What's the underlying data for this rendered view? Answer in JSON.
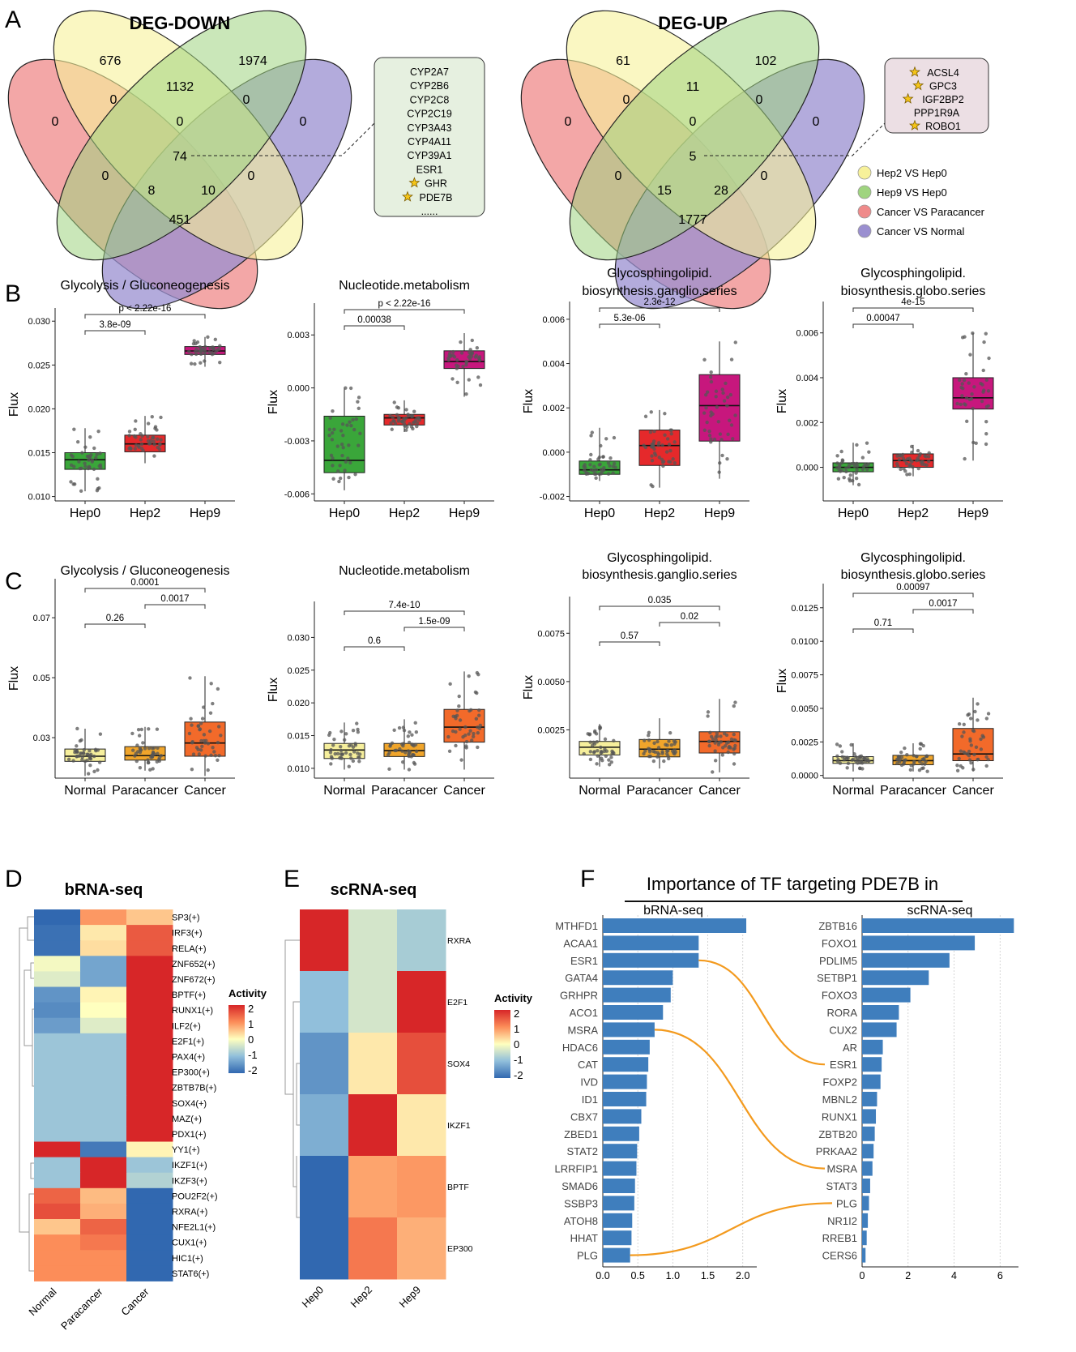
{
  "panel_labels": [
    "A",
    "B",
    "C",
    "D",
    "E",
    "F"
  ],
  "venn": {
    "down": {
      "title": "DEG-DOWN",
      "counts": [
        "676",
        "1974",
        "0",
        "1132",
        "0",
        "0",
        "0",
        "0",
        "74",
        "0",
        "0",
        "8",
        "10",
        "451"
      ],
      "genes": [
        "CYP2A7",
        "CYP2B6",
        "CYP2C8",
        "CYP2C19",
        "CYP3A43",
        "CYP4A11",
        "CYP39A1",
        "ESR1",
        "GHR",
        "PDE7B",
        "......"
      ],
      "starred": [
        "GHR",
        "PDE7B"
      ]
    },
    "up": {
      "title": "DEG-UP",
      "counts": [
        "61",
        "102",
        "0",
        "11",
        "0",
        "0",
        "0",
        "0",
        "5",
        "0",
        "0",
        "15",
        "28",
        "1777"
      ],
      "genes": [
        "ACSL4",
        "GPC3",
        "IGF2BP2",
        "PPP1R9A",
        "ROBO1"
      ],
      "starred": [
        "ACSL4",
        "GPC3",
        "IGF2BP2",
        "ROBO1"
      ]
    },
    "legend": [
      {
        "label": "Hep2 VS Hep0",
        "color": "#f7f19a"
      },
      {
        "label": "Hep9 VS Hep0",
        "color": "#9fd47f"
      },
      {
        "label": "Cancer VS Paracancer",
        "color": "#ef8a8a"
      },
      {
        "label": "Cancer VS Normal",
        "color": "#9a8fd0"
      }
    ]
  },
  "chart_data": [
    {
      "id": "B1",
      "type": "box",
      "title": [
        "Glycolysis / Gluconeogenesis"
      ],
      "ylabel": "Flux",
      "categories": [
        "Hep0",
        "Hep2",
        "Hep9"
      ],
      "colors": [
        "#3aa63a",
        "#e5292b",
        "#c7177d"
      ],
      "ylim": [
        0.0095,
        0.0315
      ],
      "ticks": [
        0.01,
        0.015,
        0.02,
        0.025,
        0.03
      ],
      "tick_labels": [
        "0.010",
        "0.015",
        "0.020",
        "0.025",
        "0.030"
      ],
      "boxes": [
        {
          "q1": 0.0131,
          "med": 0.0142,
          "q3": 0.015,
          "lo": 0.0106,
          "hi": 0.0178
        },
        {
          "q1": 0.0151,
          "med": 0.016,
          "q3": 0.017,
          "lo": 0.0138,
          "hi": 0.0192
        },
        {
          "q1": 0.0262,
          "med": 0.0266,
          "q3": 0.0271,
          "lo": 0.0248,
          "hi": 0.0282
        }
      ],
      "brackets": [
        {
          "a": 0,
          "b": 2,
          "label": "p < 2.22e-16"
        },
        {
          "a": 0,
          "b": 1,
          "label": "3.8e-09"
        }
      ]
    },
    {
      "id": "B2",
      "type": "box",
      "title": [
        "Nucleotide.metabolism"
      ],
      "ylabel": "Flux",
      "categories": [
        "Hep0",
        "Hep2",
        "Hep9"
      ],
      "colors": [
        "#3aa63a",
        "#e5292b",
        "#c7177d"
      ],
      "ylim": [
        -0.0064,
        0.0048
      ],
      "ticks": [
        -0.006,
        -0.003,
        0.0,
        0.003
      ],
      "tick_labels": [
        "-0.006",
        "-0.003",
        "0.000",
        "0.003"
      ],
      "boxes": [
        {
          "q1": -0.0048,
          "med": -0.0041,
          "q3": -0.0016,
          "lo": -0.0058,
          "hi": 0.0
        },
        {
          "q1": -0.0021,
          "med": -0.0017,
          "q3": -0.0015,
          "lo": -0.0025,
          "hi": -0.0007
        },
        {
          "q1": 0.0011,
          "med": 0.0015,
          "q3": 0.0021,
          "lo": -0.0005,
          "hi": 0.0031
        }
      ],
      "brackets": [
        {
          "a": 0,
          "b": 2,
          "label": "p < 2.22e-16"
        },
        {
          "a": 0,
          "b": 1,
          "label": "0.00038"
        }
      ]
    },
    {
      "id": "B3",
      "type": "box",
      "title": [
        "Glycosphingolipid.",
        "biosynthesis.ganglio.series"
      ],
      "ylabel": "Flux",
      "categories": [
        "Hep0",
        "Hep2",
        "Hep9"
      ],
      "colors": [
        "#3aa63a",
        "#e5292b",
        "#c7177d"
      ],
      "ylim": [
        -0.0022,
        0.0068
      ],
      "ticks": [
        -0.002,
        0.0,
        0.002,
        0.004,
        0.006
      ],
      "tick_labels": [
        "-0.002",
        "0.000",
        "0.002",
        "0.004",
        "0.006"
      ],
      "boxes": [
        {
          "q1": -0.001,
          "med": -0.0008,
          "q3": -0.0004,
          "lo": -0.0013,
          "hi": 0.0011
        },
        {
          "q1": -0.0006,
          "med": 0.0003,
          "q3": 0.001,
          "lo": -0.0016,
          "hi": 0.0019
        },
        {
          "q1": 0.0005,
          "med": 0.0021,
          "q3": 0.0035,
          "lo": -0.0012,
          "hi": 0.005
        }
      ],
      "brackets": [
        {
          "a": 0,
          "b": 2,
          "label": "2.3e-12"
        },
        {
          "a": 0,
          "b": 1,
          "label": "5.3e-06"
        }
      ]
    },
    {
      "id": "B4",
      "type": "box",
      "title": [
        "Glycosphingolipid.",
        "biosynthesis.globo.series"
      ],
      "ylabel": "Flux",
      "categories": [
        "Hep0",
        "Hep2",
        "Hep9"
      ],
      "colors": [
        "#3aa63a",
        "#e5292b",
        "#c7177d"
      ],
      "ylim": [
        -0.0015,
        0.0074
      ],
      "ticks": [
        0.0,
        0.002,
        0.004,
        0.006
      ],
      "tick_labels": [
        "0.000",
        "0.002",
        "0.004",
        "0.006"
      ],
      "boxes": [
        {
          "q1": -0.0002,
          "med": 0.0,
          "q3": 0.0002,
          "lo": -0.0008,
          "hi": 0.0011
        },
        {
          "q1": 0.0,
          "med": 0.0003,
          "q3": 0.0006,
          "lo": -0.0004,
          "hi": 0.001
        },
        {
          "q1": 0.0026,
          "med": 0.0031,
          "q3": 0.004,
          "lo": 0.0003,
          "hi": 0.006
        }
      ],
      "brackets": [
        {
          "a": 0,
          "b": 2,
          "label": "4e-15"
        },
        {
          "a": 0,
          "b": 1,
          "label": "0.00047"
        }
      ]
    },
    {
      "id": "C1",
      "type": "box",
      "title": [
        "Glycolysis / Gluconeogenesis"
      ],
      "ylabel": "Flux",
      "categories": [
        "Normal",
        "Paracancer",
        "Cancer"
      ],
      "colors": [
        "#f6ef9c",
        "#f0a52b",
        "#f26a2a"
      ],
      "ylim": [
        0.0165,
        0.083
      ],
      "ticks": [
        0.03,
        0.05,
        0.07
      ],
      "tick_labels": [
        "0.03",
        "0.05",
        "0.07"
      ],
      "boxes": [
        {
          "q1": 0.0221,
          "med": 0.0238,
          "q3": 0.0262,
          "lo": 0.0172,
          "hi": 0.033
        },
        {
          "q1": 0.0225,
          "med": 0.024,
          "q3": 0.027,
          "lo": 0.019,
          "hi": 0.0336
        },
        {
          "q1": 0.0238,
          "med": 0.0282,
          "q3": 0.0352,
          "lo": 0.0172,
          "hi": 0.0505
        }
      ],
      "brackets": [
        {
          "a": 0,
          "b": 2,
          "label": "0.0001"
        },
        {
          "a": 1,
          "b": 2,
          "label": "0.0017"
        },
        {
          "a": 0,
          "b": 1,
          "label": "0.26"
        }
      ]
    },
    {
      "id": "C2",
      "type": "box",
      "title": [
        "Nucleotide.metabolism"
      ],
      "ylabel": "Flux",
      "categories": [
        "Normal",
        "Paracancer",
        "Cancer"
      ],
      "colors": [
        "#f6ef9c",
        "#f0a52b",
        "#f26a2a"
      ],
      "ylim": [
        0.0085,
        0.0355
      ],
      "ticks": [
        0.01,
        0.015,
        0.02,
        0.025,
        0.03
      ],
      "tick_labels": [
        "0.010",
        "0.015",
        "0.020",
        "0.025",
        "0.030"
      ],
      "boxes": [
        {
          "q1": 0.0115,
          "med": 0.0128,
          "q3": 0.0138,
          "lo": 0.0098,
          "hi": 0.017
        },
        {
          "q1": 0.0118,
          "med": 0.0127,
          "q3": 0.0138,
          "lo": 0.0098,
          "hi": 0.0175
        },
        {
          "q1": 0.014,
          "med": 0.0163,
          "q3": 0.019,
          "lo": 0.0098,
          "hi": 0.0248
        }
      ],
      "brackets": [
        {
          "a": 0,
          "b": 2,
          "label": "7.4e-10"
        },
        {
          "a": 1,
          "b": 2,
          "label": "1.5e-09"
        },
        {
          "a": 0,
          "b": 1,
          "label": "0.6"
        }
      ]
    },
    {
      "id": "C3",
      "type": "box",
      "title": [
        "Glycosphingolipid.",
        "biosynthesis.ganglio.series"
      ],
      "ylabel": "Flux",
      "categories": [
        "Normal",
        "Paracancer",
        "Cancer"
      ],
      "colors": [
        "#f6ef9c",
        "#f0a52b",
        "#f26a2a"
      ],
      "ylim": [
        0.0,
        0.0094
      ],
      "ticks": [
        0.0025,
        0.005,
        0.0075
      ],
      "tick_labels": [
        "0.0025",
        "0.0050",
        "0.0075"
      ],
      "boxes": [
        {
          "q1": 0.0012,
          "med": 0.0016,
          "q3": 0.0019,
          "lo": 0.0006,
          "hi": 0.0028
        },
        {
          "q1": 0.0011,
          "med": 0.0015,
          "q3": 0.002,
          "lo": 0.0005,
          "hi": 0.0031
        },
        {
          "q1": 0.0013,
          "med": 0.0019,
          "q3": 0.0024,
          "lo": 0.0003,
          "hi": 0.0041
        }
      ],
      "brackets": [
        {
          "a": 0,
          "b": 2,
          "label": "0.035"
        },
        {
          "a": 1,
          "b": 2,
          "label": "0.02"
        },
        {
          "a": 0,
          "b": 1,
          "label": "0.57"
        }
      ]
    },
    {
      "id": "C4",
      "type": "box",
      "title": [
        "Glycosphingolipid.",
        "biosynthesis.globo.series"
      ],
      "ylabel": "Flux",
      "categories": [
        "Normal",
        "Paracancer",
        "Cancer"
      ],
      "colors": [
        "#f6ef9c",
        "#f0a52b",
        "#f26a2a"
      ],
      "ylim": [
        -0.0002,
        0.0143
      ],
      "ticks": [
        0.0,
        0.0025,
        0.005,
        0.0075,
        0.01,
        0.0125
      ],
      "tick_labels": [
        "0.0000",
        "0.0025",
        "0.0050",
        "0.0075",
        "0.0100",
        "0.0125"
      ],
      "boxes": [
        {
          "q1": 0.0009,
          "med": 0.0011,
          "q3": 0.0014,
          "lo": 0.0003,
          "hi": 0.0024
        },
        {
          "q1": 0.0008,
          "med": 0.0011,
          "q3": 0.0015,
          "lo": 0.0003,
          "hi": 0.0024
        },
        {
          "q1": 0.0011,
          "med": 0.0016,
          "q3": 0.0035,
          "lo": 0.0003,
          "hi": 0.0058
        }
      ],
      "brackets": [
        {
          "a": 0,
          "b": 2,
          "label": "0.00097"
        },
        {
          "a": 1,
          "b": 2,
          "label": "0.0017"
        },
        {
          "a": 0,
          "b": 1,
          "label": "0.71"
        }
      ]
    },
    {
      "id": "D",
      "type": "heatmap",
      "title": "bRNA-seq",
      "columns": [
        "Normal",
        "Paracancer",
        "Cancer"
      ],
      "rows": [
        "SP3(+)",
        "IRF3(+)",
        "RELA(+)",
        "ZNF652(+)",
        "ZNF672(+)",
        "BPTF(+)",
        "RUNX1(+)",
        "ILF2(+)",
        "E2F1(+)",
        "PAX4(+)",
        "EP300(+)",
        "ZBTB7B(+)",
        "SOX4(+)",
        "MAZ(+)",
        "PDX1(+)",
        "YY1(+)",
        "IKZF1(+)",
        "IKZF3(+)",
        "POU2F2(+)",
        "RXRA(+)",
        "NFE2L1(+)",
        "CUX1(+)",
        "HIC1(+)",
        "STAT6(+)"
      ],
      "values": [
        [
          -2,
          0.9,
          0.5
        ],
        [
          -1.9,
          0.2,
          1.5
        ],
        [
          -1.9,
          0.3,
          1.5
        ],
        [
          -0.1,
          -1.3,
          2
        ],
        [
          -0.3,
          -1.3,
          2
        ],
        [
          -1.5,
          0.1,
          2
        ],
        [
          -1.6,
          0,
          2
        ],
        [
          -1.4,
          -0.3,
          2
        ],
        [
          -0.9,
          -0.9,
          2
        ],
        [
          -0.9,
          -0.9,
          2
        ],
        [
          -0.9,
          -0.9,
          2
        ],
        [
          -0.9,
          -0.9,
          2
        ],
        [
          -0.9,
          -0.9,
          2
        ],
        [
          -0.9,
          -0.9,
          2
        ],
        [
          -0.9,
          -0.9,
          2
        ],
        [
          2,
          -1.8,
          0.1
        ],
        [
          -0.9,
          2,
          -0.9
        ],
        [
          -0.9,
          2,
          -0.7
        ],
        [
          1.4,
          0.6,
          -2
        ],
        [
          1.6,
          0.7,
          -2
        ],
        [
          0.5,
          1.4,
          -2
        ],
        [
          1.0,
          1.2,
          -2
        ],
        [
          1.0,
          1.0,
          -2
        ],
        [
          1.0,
          1.0,
          -2
        ]
      ],
      "legend": {
        "title": "Activity",
        "ticks": [
          2,
          1,
          0,
          -1,
          -2
        ]
      }
    },
    {
      "id": "E",
      "type": "heatmap",
      "title": "scRNA-seq",
      "columns": [
        "Hep0",
        "Hep2",
        "Hep9"
      ],
      "rows": [
        "RXRA",
        "E2F1",
        "SOX4",
        "IKZF1",
        "BPTF",
        "EP300"
      ],
      "values": [
        [
          2,
          -0.4,
          -0.8
        ],
        [
          -1,
          -0.4,
          2
        ],
        [
          -1.5,
          0.2,
          1.6
        ],
        [
          -1.2,
          2,
          0.2
        ],
        [
          -2,
          0.8,
          0.9
        ],
        [
          -2,
          1.2,
          0.7
        ]
      ],
      "legend": {
        "title": "Activity",
        "ticks": [
          2,
          1,
          0,
          -1,
          -2
        ]
      }
    },
    {
      "id": "F",
      "type": "bar",
      "title": "Importance of TF targeting PDE7B  in",
      "left": {
        "subtitle": "bRNA-seq",
        "categories": [
          "MTHFD1",
          "ACAA1",
          "ESR1",
          "GATA4",
          "GRHPR",
          "ACO1",
          "MSRA",
          "HDAC6",
          "CAT",
          "IVD",
          "ID1",
          "CBX7",
          "ZBED1",
          "STAT2",
          "LRRFIP1",
          "SMAD6",
          "SSBP3",
          "ATOH8",
          "HHAT",
          "PLG"
        ],
        "values": [
          2.05,
          1.37,
          1.37,
          1.0,
          0.97,
          0.86,
          0.74,
          0.67,
          0.65,
          0.63,
          0.62,
          0.55,
          0.52,
          0.49,
          0.48,
          0.46,
          0.45,
          0.42,
          0.41,
          0.39
        ],
        "xlim": [
          0,
          2.2
        ],
        "ticks": [
          0.0,
          0.5,
          1.0,
          1.5,
          2.0
        ],
        "tick_labels": [
          "0.0",
          "0.5",
          "1.0",
          "1.5",
          "2.0"
        ]
      },
      "right": {
        "subtitle": "scRNA-seq",
        "categories": [
          "ZBTB16",
          "FOXO1",
          "PDLIM5",
          "SETBP1",
          "FOXO3",
          "RORA",
          "CUX2",
          "AR",
          "ESR1",
          "FOXP2",
          "MBNL2",
          "RUNX1",
          "ZBTB20",
          "PRKAA2",
          "MSRA",
          "STAT3",
          "PLG",
          "NR1I2",
          "RREB1",
          "CERS6"
        ],
        "values": [
          6.6,
          4.9,
          3.8,
          2.9,
          2.1,
          1.6,
          1.5,
          0.9,
          0.85,
          0.8,
          0.65,
          0.6,
          0.55,
          0.5,
          0.45,
          0.35,
          0.3,
          0.25,
          0.2,
          0.15
        ],
        "xlim": [
          0,
          6.8
        ],
        "ticks": [
          0,
          2,
          4,
          6
        ],
        "tick_labels": [
          "0",
          "2",
          "4",
          "6"
        ]
      },
      "links": [
        [
          "ESR1",
          "ESR1"
        ],
        [
          "MSRA",
          "MSRA"
        ],
        [
          "PLG",
          "PLG"
        ]
      ],
      "bar_color": "#3f7ebd",
      "link_color": "#f39a1e"
    }
  ]
}
